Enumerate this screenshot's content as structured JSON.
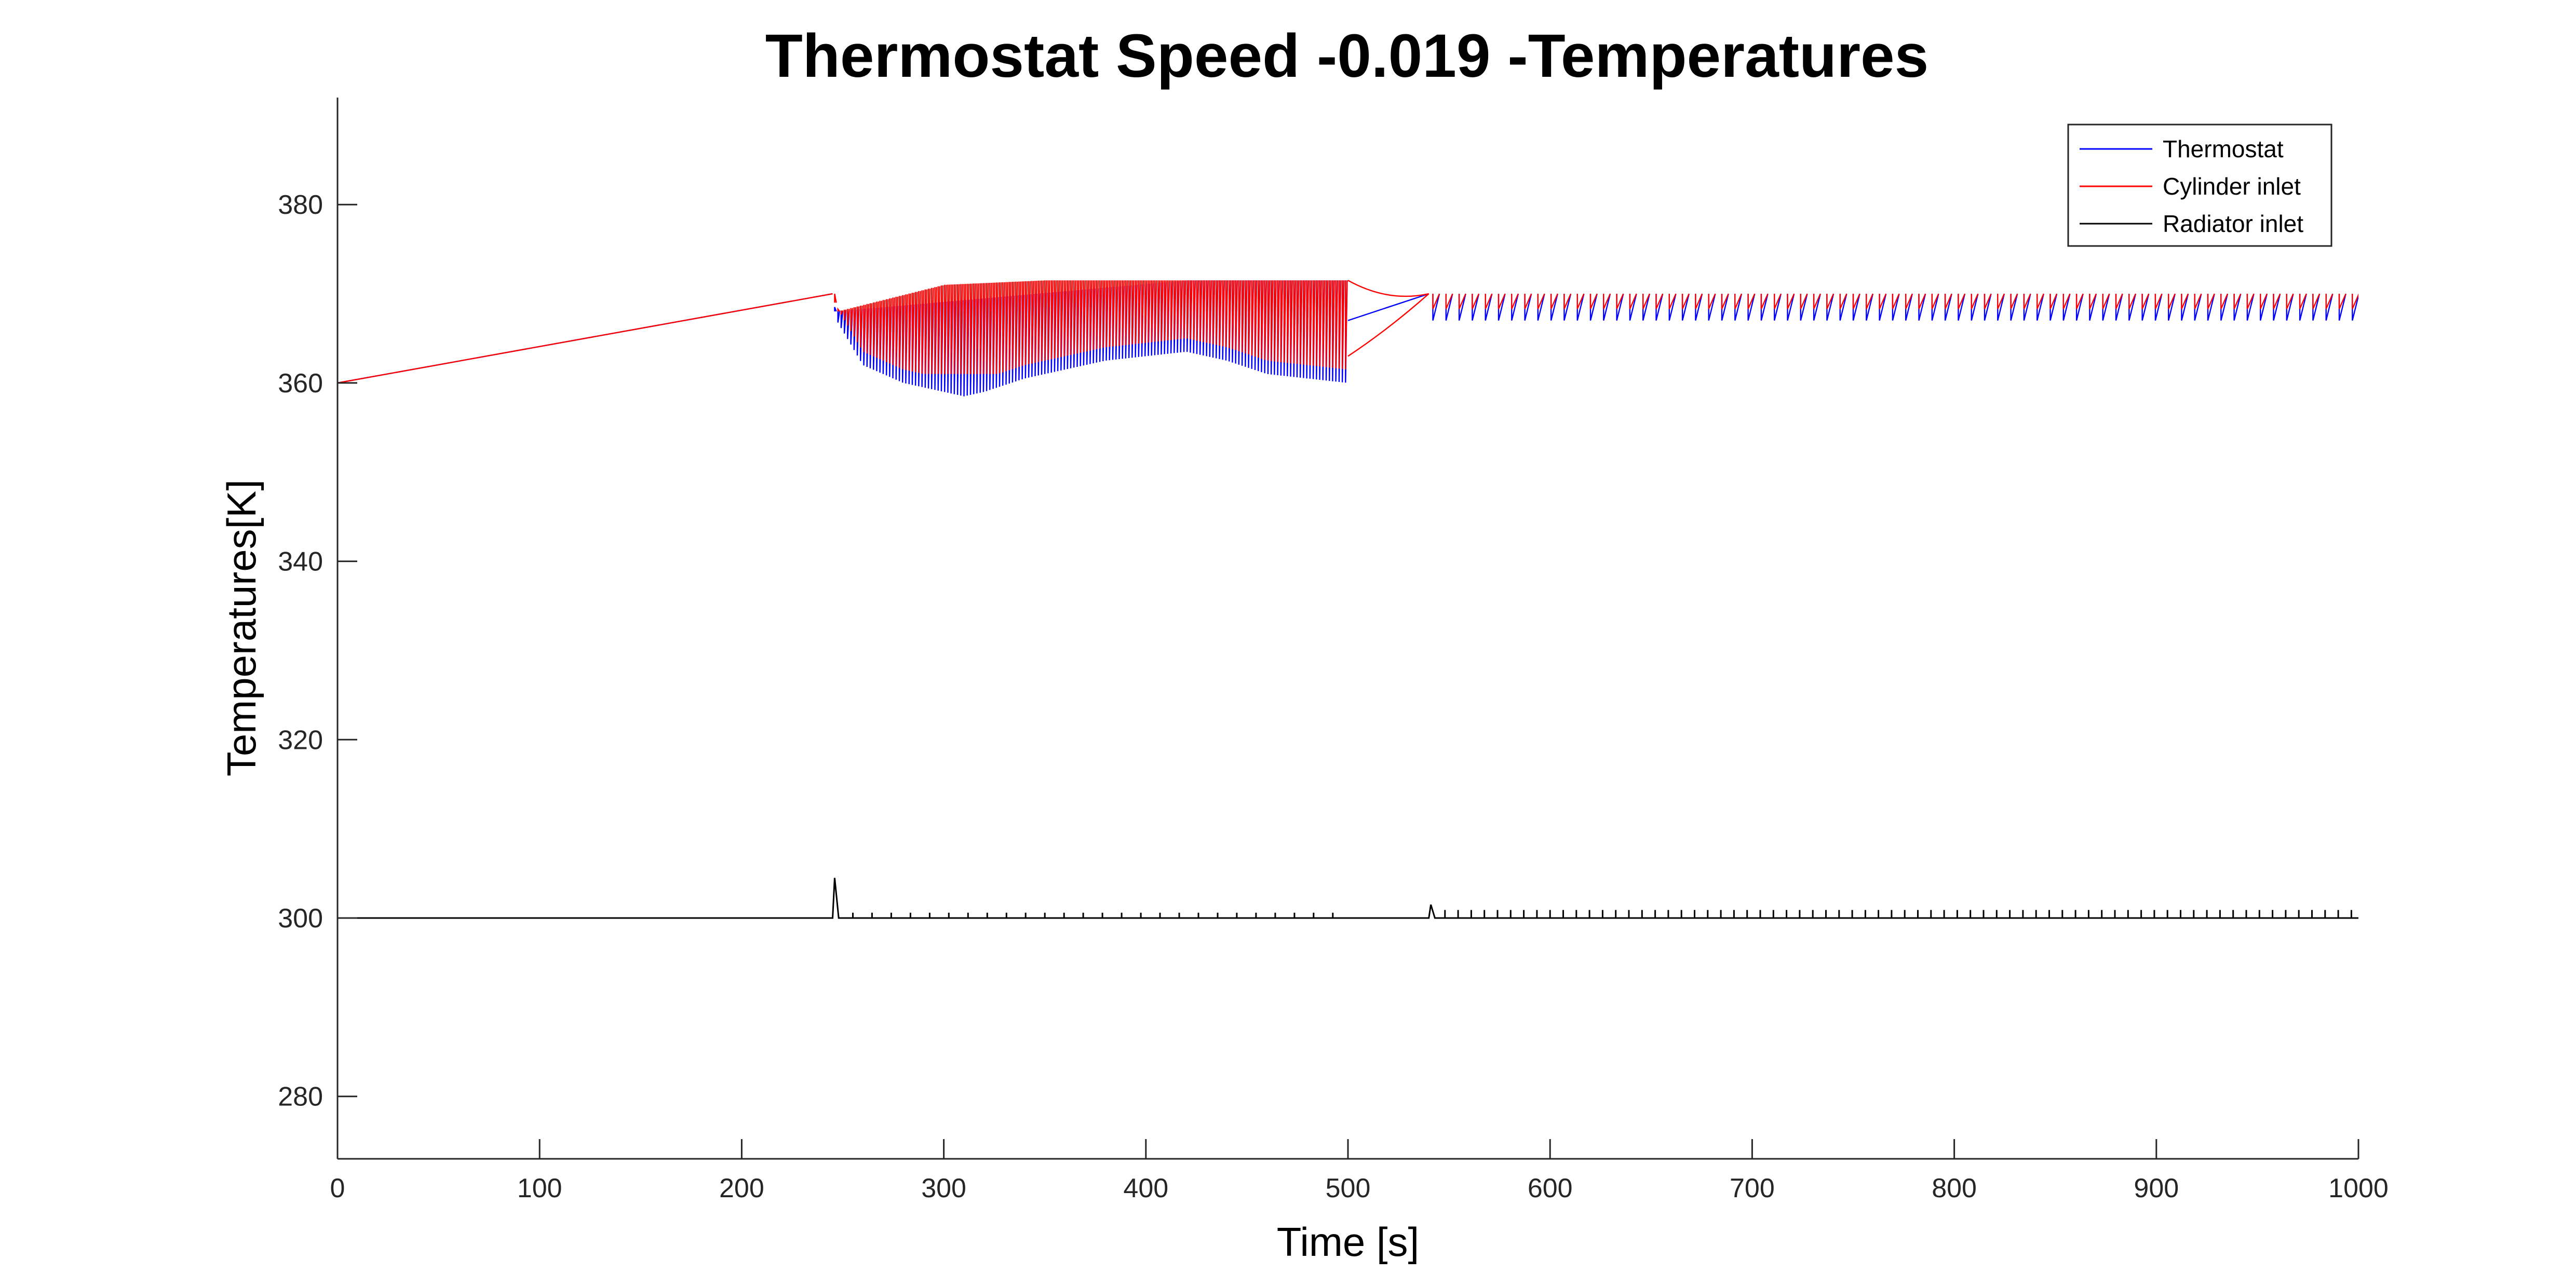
{
  "chart_data": {
    "type": "line",
    "title": "Thermostat Speed -0.019 -Temperatures",
    "xlabel": "Time [s]",
    "ylabel": "Temperatures[K]",
    "xlim": [
      0,
      1000
    ],
    "ylim": [
      273,
      392
    ],
    "x_ticks": [
      0,
      100,
      200,
      300,
      400,
      500,
      600,
      700,
      800,
      900,
      1000
    ],
    "y_ticks": [
      280,
      300,
      320,
      340,
      360,
      380
    ],
    "x_tick_labels": [
      "0",
      "100",
      "200",
      "300",
      "400",
      "500",
      "600",
      "700",
      "800",
      "900",
      "1000"
    ],
    "y_tick_labels": [
      "280",
      "300",
      "320",
      "340",
      "360",
      "380"
    ],
    "grid": false,
    "legend_position": "top-right",
    "series": [
      {
        "name": "Thermostat",
        "color": "#0000ff",
        "x": [
          0,
          245,
          247,
          260,
          270,
          280,
          290,
          300,
          310,
          320,
          340,
          360,
          380,
          400,
          420,
          440,
          460,
          480,
          500,
          520,
          540,
          545,
          600,
          700,
          800,
          900,
          1000
        ],
        "y": [
          360,
          370,
          367,
          362,
          361,
          360,
          359.5,
          359,
          358.5,
          359,
          360.5,
          361.5,
          362.5,
          363,
          363.5,
          362.5,
          361,
          360.5,
          360,
          368,
          370,
          367,
          367,
          367,
          367,
          367,
          367
        ]
      },
      {
        "name": "Cylinder inlet",
        "color": "#ff0000",
        "x": [
          0,
          245,
          247,
          300,
          350,
          400,
          450,
          500,
          520,
          540,
          545,
          600,
          700,
          800,
          900,
          1000
        ],
        "y": [
          360,
          370,
          368,
          371,
          371.5,
          371.5,
          371.5,
          371.5,
          368.5,
          370,
          369.5,
          369.5,
          369.5,
          369.5,
          369.5,
          369.5
        ]
      },
      {
        "name": "Radiator inlet",
        "color": "#000000",
        "x": [
          0,
          245,
          246,
          250,
          300,
          400,
          500,
          540,
          541,
          545,
          600,
          700,
          800,
          900,
          1000
        ],
        "y": [
          300,
          300,
          304.5,
          300,
          300,
          300,
          300,
          300,
          301.5,
          300,
          300,
          300,
          300,
          300,
          300
        ]
      }
    ]
  }
}
